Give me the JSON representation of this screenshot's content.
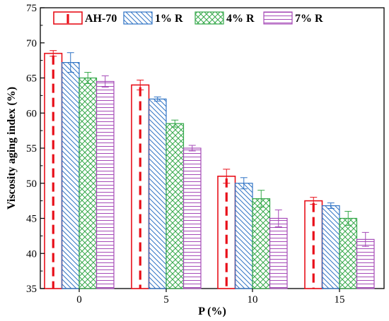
{
  "chart_data": {
    "type": "bar",
    "title": "",
    "xlabel": "P (%)",
    "ylabel": "Viscosity aging index (%)",
    "categories": [
      "0",
      "5",
      "10",
      "15"
    ],
    "ylim": [
      35,
      75
    ],
    "yticks": [
      35,
      40,
      45,
      50,
      55,
      60,
      65,
      70,
      75
    ],
    "legend_position": "top",
    "grid": false,
    "series": [
      {
        "name": "AH-70",
        "values": [
          68.5,
          64.0,
          51.0,
          47.5
        ],
        "errors": [
          0.4,
          0.7,
          1.0,
          0.5
        ],
        "color": "#e8101a",
        "pattern": "red-dashes"
      },
      {
        "name": "1% R",
        "values": [
          67.2,
          62.0,
          50.0,
          46.8
        ],
        "errors": [
          1.4,
          0.3,
          0.8,
          0.4
        ],
        "color": "#2f73c5",
        "pattern": "diagonal-back"
      },
      {
        "name": "4% R",
        "values": [
          65.0,
          58.5,
          47.8,
          45.0
        ],
        "errors": [
          0.8,
          0.5,
          1.2,
          1.0
        ],
        "color": "#35a84a",
        "pattern": "crosshatch"
      },
      {
        "name": "7% R",
        "values": [
          64.5,
          55.0,
          45.0,
          42.0
        ],
        "errors": [
          0.8,
          0.4,
          1.2,
          1.0
        ],
        "color": "#a64bb8",
        "pattern": "horizontal"
      }
    ]
  }
}
